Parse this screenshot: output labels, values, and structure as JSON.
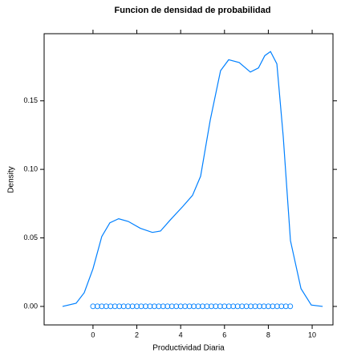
{
  "chart_data": {
    "type": "density",
    "title": "Funcion de densidad de probabilidad",
    "x_label": "Productividad Diaria",
    "y_label": "Density",
    "color": "#0080ff",
    "x": [
      -1.39,
      -0.77,
      -0.4,
      0,
      0.4,
      0.77,
      1.17,
      1.61,
      2.16,
      2.71,
      3.08,
      3.52,
      4.1,
      4.54,
      4.91,
      5.35,
      5.82,
      6.19,
      6.67,
      7.18,
      7.55,
      7.84,
      8.1,
      8.39,
      8.68,
      9.01,
      9.49,
      9.96,
      10.48
    ],
    "values": [
      0,
      0.0023,
      0.01,
      0.0275,
      0.051,
      0.061,
      0.064,
      0.062,
      0.057,
      0.054,
      0.055,
      0.063,
      0.073,
      0.081,
      0.095,
      0.136,
      0.172,
      0.18,
      0.178,
      0.171,
      0.174,
      0.183,
      0.186,
      0.177,
      0.124,
      0.048,
      0.013,
      0.001,
      0
    ],
    "points": [
      0,
      0.2,
      0.4,
      0.6,
      0.8,
      1.0,
      1.2,
      1.4,
      1.6,
      1.8,
      2.0,
      2.2,
      2.4,
      2.6,
      2.8,
      3.0,
      3.2,
      3.4,
      3.6,
      3.8,
      4.0,
      4.2,
      4.4,
      4.6,
      4.8,
      5.0,
      5.2,
      5.4,
      5.6,
      5.8,
      6.0,
      6.2,
      6.4,
      6.6,
      6.8,
      7.0,
      7.2,
      7.4,
      7.6,
      7.8,
      8.0,
      8.2,
      8.4,
      8.6,
      8.8,
      9.0
    ],
    "xlim": [
      -2.23,
      10.95
    ],
    "ylim": [
      -0.0135,
      0.199
    ],
    "xticks": [
      0,
      2,
      4,
      6,
      8,
      10
    ],
    "yticks": [
      {
        "value": 0,
        "label": "0.00"
      },
      {
        "value": 0.05,
        "label": "0.05"
      },
      {
        "value": 0.1,
        "label": "0.10"
      },
      {
        "value": 0.15,
        "label": "0.15"
      }
    ]
  }
}
